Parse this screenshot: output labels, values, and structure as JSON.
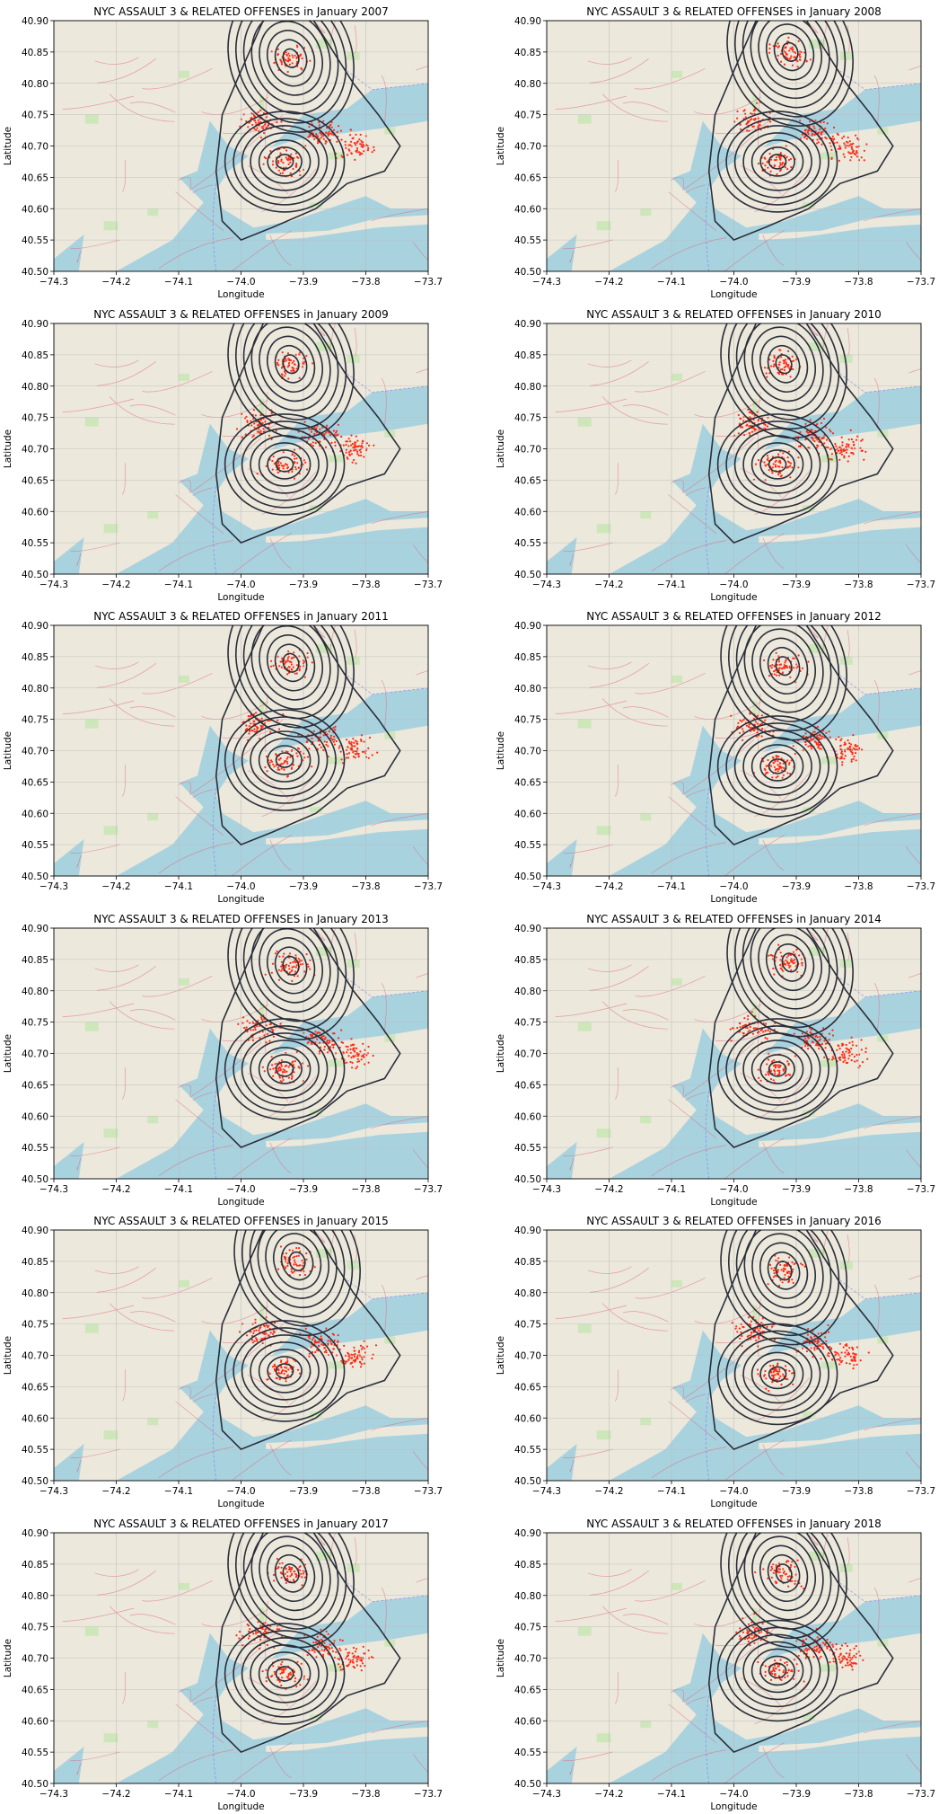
{
  "figure": {
    "background": "#ffffff",
    "colors": {
      "water": "#a9d2df",
      "land": "#ece8dc",
      "parks": "#c9e6b4",
      "roads": "#e15a6f",
      "crime_points": "#ff2a14",
      "contours": "#2a2f3a",
      "gridlines": "#b8b8b8"
    }
  },
  "chart_data": [
    {
      "type": "contour",
      "title": "NYC ASSAULT 3 & RELATED OFFENSES in January 2007",
      "xlabel": "Longitude",
      "ylabel": "Latitude",
      "xlim": [
        -74.3,
        -73.7
      ],
      "ylim": [
        40.5,
        40.9
      ],
      "xticks": [
        "−74.3",
        "−74.2",
        "−74.1",
        "−74.0",
        "−73.9",
        "−73.8",
        "−73.7"
      ],
      "yticks": [
        "40.50",
        "40.55",
        "40.60",
        "40.65",
        "40.70",
        "40.75",
        "40.80",
        "40.85",
        "40.90"
      ],
      "grid": true,
      "density_peaks": [
        [
          -73.92,
          40.84
        ],
        [
          -73.93,
          40.675
        ]
      ]
    },
    {
      "type": "contour",
      "title": "NYC ASSAULT 3 & RELATED OFFENSES in January 2008",
      "xlabel": "Longitude",
      "ylabel": "Latitude",
      "xlim": [
        -74.3,
        -73.7
      ],
      "ylim": [
        40.5,
        40.9
      ],
      "xticks": [
        "−74.3",
        "−74.2",
        "−74.1",
        "−74.0",
        "−73.9",
        "−73.8",
        "−73.7"
      ],
      "yticks": [
        "40.50",
        "40.55",
        "40.60",
        "40.65",
        "40.70",
        "40.75",
        "40.80",
        "40.85",
        "40.90"
      ],
      "grid": true,
      "density_peaks": [
        [
          -73.91,
          40.85
        ],
        [
          -73.93,
          40.675
        ]
      ]
    },
    {
      "type": "contour",
      "title": "NYC ASSAULT 3 & RELATED OFFENSES in January 2009",
      "xlabel": "Longitude",
      "ylabel": "Latitude",
      "xlim": [
        -74.3,
        -73.7
      ],
      "ylim": [
        40.5,
        40.9
      ],
      "xticks": [
        "−74.3",
        "−74.2",
        "−74.1",
        "−74.0",
        "−73.9",
        "−73.8",
        "−73.7"
      ],
      "yticks": [
        "40.50",
        "40.55",
        "40.60",
        "40.65",
        "40.70",
        "40.75",
        "40.80",
        "40.85",
        "40.90"
      ],
      "grid": true,
      "density_peaks": [
        [
          -73.92,
          40.835
        ],
        [
          -73.93,
          40.675
        ]
      ]
    },
    {
      "type": "contour",
      "title": "NYC ASSAULT 3 & RELATED OFFENSES in January 2010",
      "xlabel": "Longitude",
      "ylabel": "Latitude",
      "xlim": [
        -74.3,
        -73.7
      ],
      "ylim": [
        40.5,
        40.9
      ],
      "xticks": [
        "−74.3",
        "−74.2",
        "−74.1",
        "−74.0",
        "−73.9",
        "−73.8",
        "−73.7"
      ],
      "yticks": [
        "40.50",
        "40.55",
        "40.60",
        "40.65",
        "40.70",
        "40.75",
        "40.80",
        "40.85",
        "40.90"
      ],
      "grid": true,
      "density_peaks": [
        [
          -73.92,
          40.835
        ],
        [
          -73.93,
          40.675
        ]
      ]
    },
    {
      "type": "contour",
      "title": "NYC ASSAULT 3 & RELATED OFFENSES in January 2011",
      "xlabel": "Longitude",
      "ylabel": "Latitude",
      "xlim": [
        -74.3,
        -73.7
      ],
      "ylim": [
        40.5,
        40.9
      ],
      "xticks": [
        "−74.3",
        "−74.2",
        "−74.1",
        "−74.0",
        "−73.9",
        "−73.8",
        "−73.7"
      ],
      "yticks": [
        "40.50",
        "40.55",
        "40.60",
        "40.65",
        "40.70",
        "40.75",
        "40.80",
        "40.85",
        "40.90"
      ],
      "grid": true,
      "density_peaks": [
        [
          -73.92,
          40.84
        ],
        [
          -73.93,
          40.685
        ]
      ]
    },
    {
      "type": "contour",
      "title": "NYC ASSAULT 3 & RELATED OFFENSES in January 2012",
      "xlabel": "Longitude",
      "ylabel": "Latitude",
      "xlim": [
        -74.3,
        -73.7
      ],
      "ylim": [
        40.5,
        40.9
      ],
      "xticks": [
        "−74.3",
        "−74.2",
        "−74.1",
        "−74.0",
        "−73.9",
        "−73.8",
        "−73.7"
      ],
      "yticks": [
        "40.50",
        "40.55",
        "40.60",
        "40.65",
        "40.70",
        "40.75",
        "40.80",
        "40.85",
        "40.90"
      ],
      "grid": true,
      "density_peaks": [
        [
          -73.92,
          40.835
        ],
        [
          -73.93,
          40.675
        ]
      ]
    },
    {
      "type": "contour",
      "title": "NYC ASSAULT 3 & RELATED OFFENSES in January 2013",
      "xlabel": "Longitude",
      "ylabel": "Latitude",
      "xlim": [
        -74.3,
        -73.7
      ],
      "ylim": [
        40.5,
        40.9
      ],
      "xticks": [
        "−74.3",
        "−74.2",
        "−74.1",
        "−74.0",
        "−73.9",
        "−73.8",
        "−73.7"
      ],
      "yticks": [
        "40.50",
        "40.55",
        "40.60",
        "40.65",
        "40.70",
        "40.75",
        "40.80",
        "40.85",
        "40.90"
      ],
      "grid": true,
      "density_peaks": [
        [
          -73.92,
          40.84
        ],
        [
          -73.93,
          40.675
        ]
      ]
    },
    {
      "type": "contour",
      "title": "NYC ASSAULT 3 & RELATED OFFENSES in January 2014",
      "xlabel": "Longitude",
      "ylabel": "Latitude",
      "xlim": [
        -74.3,
        -73.7
      ],
      "ylim": [
        40.5,
        40.9
      ],
      "xticks": [
        "−74.3",
        "−74.2",
        "−74.1",
        "−74.0",
        "−73.9",
        "−73.8",
        "−73.7"
      ],
      "yticks": [
        "40.50",
        "40.55",
        "40.60",
        "40.65",
        "40.70",
        "40.75",
        "40.80",
        "40.85",
        "40.90"
      ],
      "grid": true,
      "density_peaks": [
        [
          -73.91,
          40.845
        ],
        [
          -73.93,
          40.675
        ]
      ]
    },
    {
      "type": "contour",
      "title": "NYC ASSAULT 3 & RELATED OFFENSES in January 2015",
      "xlabel": "Longitude",
      "ylabel": "Latitude",
      "xlim": [
        -74.3,
        -73.7
      ],
      "ylim": [
        40.5,
        40.9
      ],
      "xticks": [
        "−74.3",
        "−74.2",
        "−74.1",
        "−74.0",
        "−73.9",
        "−73.8",
        "−73.7"
      ],
      "yticks": [
        "40.50",
        "40.55",
        "40.60",
        "40.65",
        "40.70",
        "40.75",
        "40.80",
        "40.85",
        "40.90"
      ],
      "grid": true,
      "density_peaks": [
        [
          -73.91,
          40.85
        ],
        [
          -73.93,
          40.675
        ]
      ]
    },
    {
      "type": "contour",
      "title": "NYC ASSAULT 3 & RELATED OFFENSES in January 2016",
      "xlabel": "Longitude",
      "ylabel": "Latitude",
      "xlim": [
        -74.3,
        -73.7
      ],
      "ylim": [
        40.5,
        40.9
      ],
      "xticks": [
        "−74.3",
        "−74.2",
        "−74.1",
        "−74.0",
        "−73.9",
        "−73.8",
        "−73.7"
      ],
      "yticks": [
        "40.50",
        "40.55",
        "40.60",
        "40.65",
        "40.70",
        "40.75",
        "40.80",
        "40.85",
        "40.90"
      ],
      "grid": true,
      "density_peaks": [
        [
          -73.92,
          40.835
        ],
        [
          -73.93,
          40.67
        ]
      ]
    },
    {
      "type": "contour",
      "title": "NYC ASSAULT 3 & RELATED OFFENSES in January 2017",
      "xlabel": "Longitude",
      "ylabel": "Latitude",
      "xlim": [
        -74.3,
        -73.7
      ],
      "ylim": [
        40.5,
        40.9
      ],
      "xticks": [
        "−74.3",
        "−74.2",
        "−74.1",
        "−74.0",
        "−73.9",
        "−73.8",
        "−73.7"
      ],
      "yticks": [
        "40.50",
        "40.55",
        "40.60",
        "40.65",
        "40.70",
        "40.75",
        "40.80",
        "40.85",
        "40.90"
      ],
      "grid": true,
      "density_peaks": [
        [
          -73.92,
          40.835
        ],
        [
          -73.93,
          40.675
        ]
      ]
    },
    {
      "type": "contour",
      "title": "NYC ASSAULT 3 & RELATED OFFENSES in January 2018",
      "xlabel": "Longitude",
      "ylabel": "Latitude",
      "xlim": [
        -74.3,
        -73.7
      ],
      "ylim": [
        40.5,
        40.9
      ],
      "xticks": [
        "−74.3",
        "−74.2",
        "−74.1",
        "−74.0",
        "−73.9",
        "−73.8",
        "−73.7"
      ],
      "yticks": [
        "40.50",
        "40.55",
        "40.60",
        "40.65",
        "40.70",
        "40.75",
        "40.80",
        "40.85",
        "40.90"
      ],
      "grid": true,
      "density_peaks": [
        [
          -73.92,
          40.835
        ],
        [
          -73.93,
          40.68
        ]
      ]
    }
  ]
}
